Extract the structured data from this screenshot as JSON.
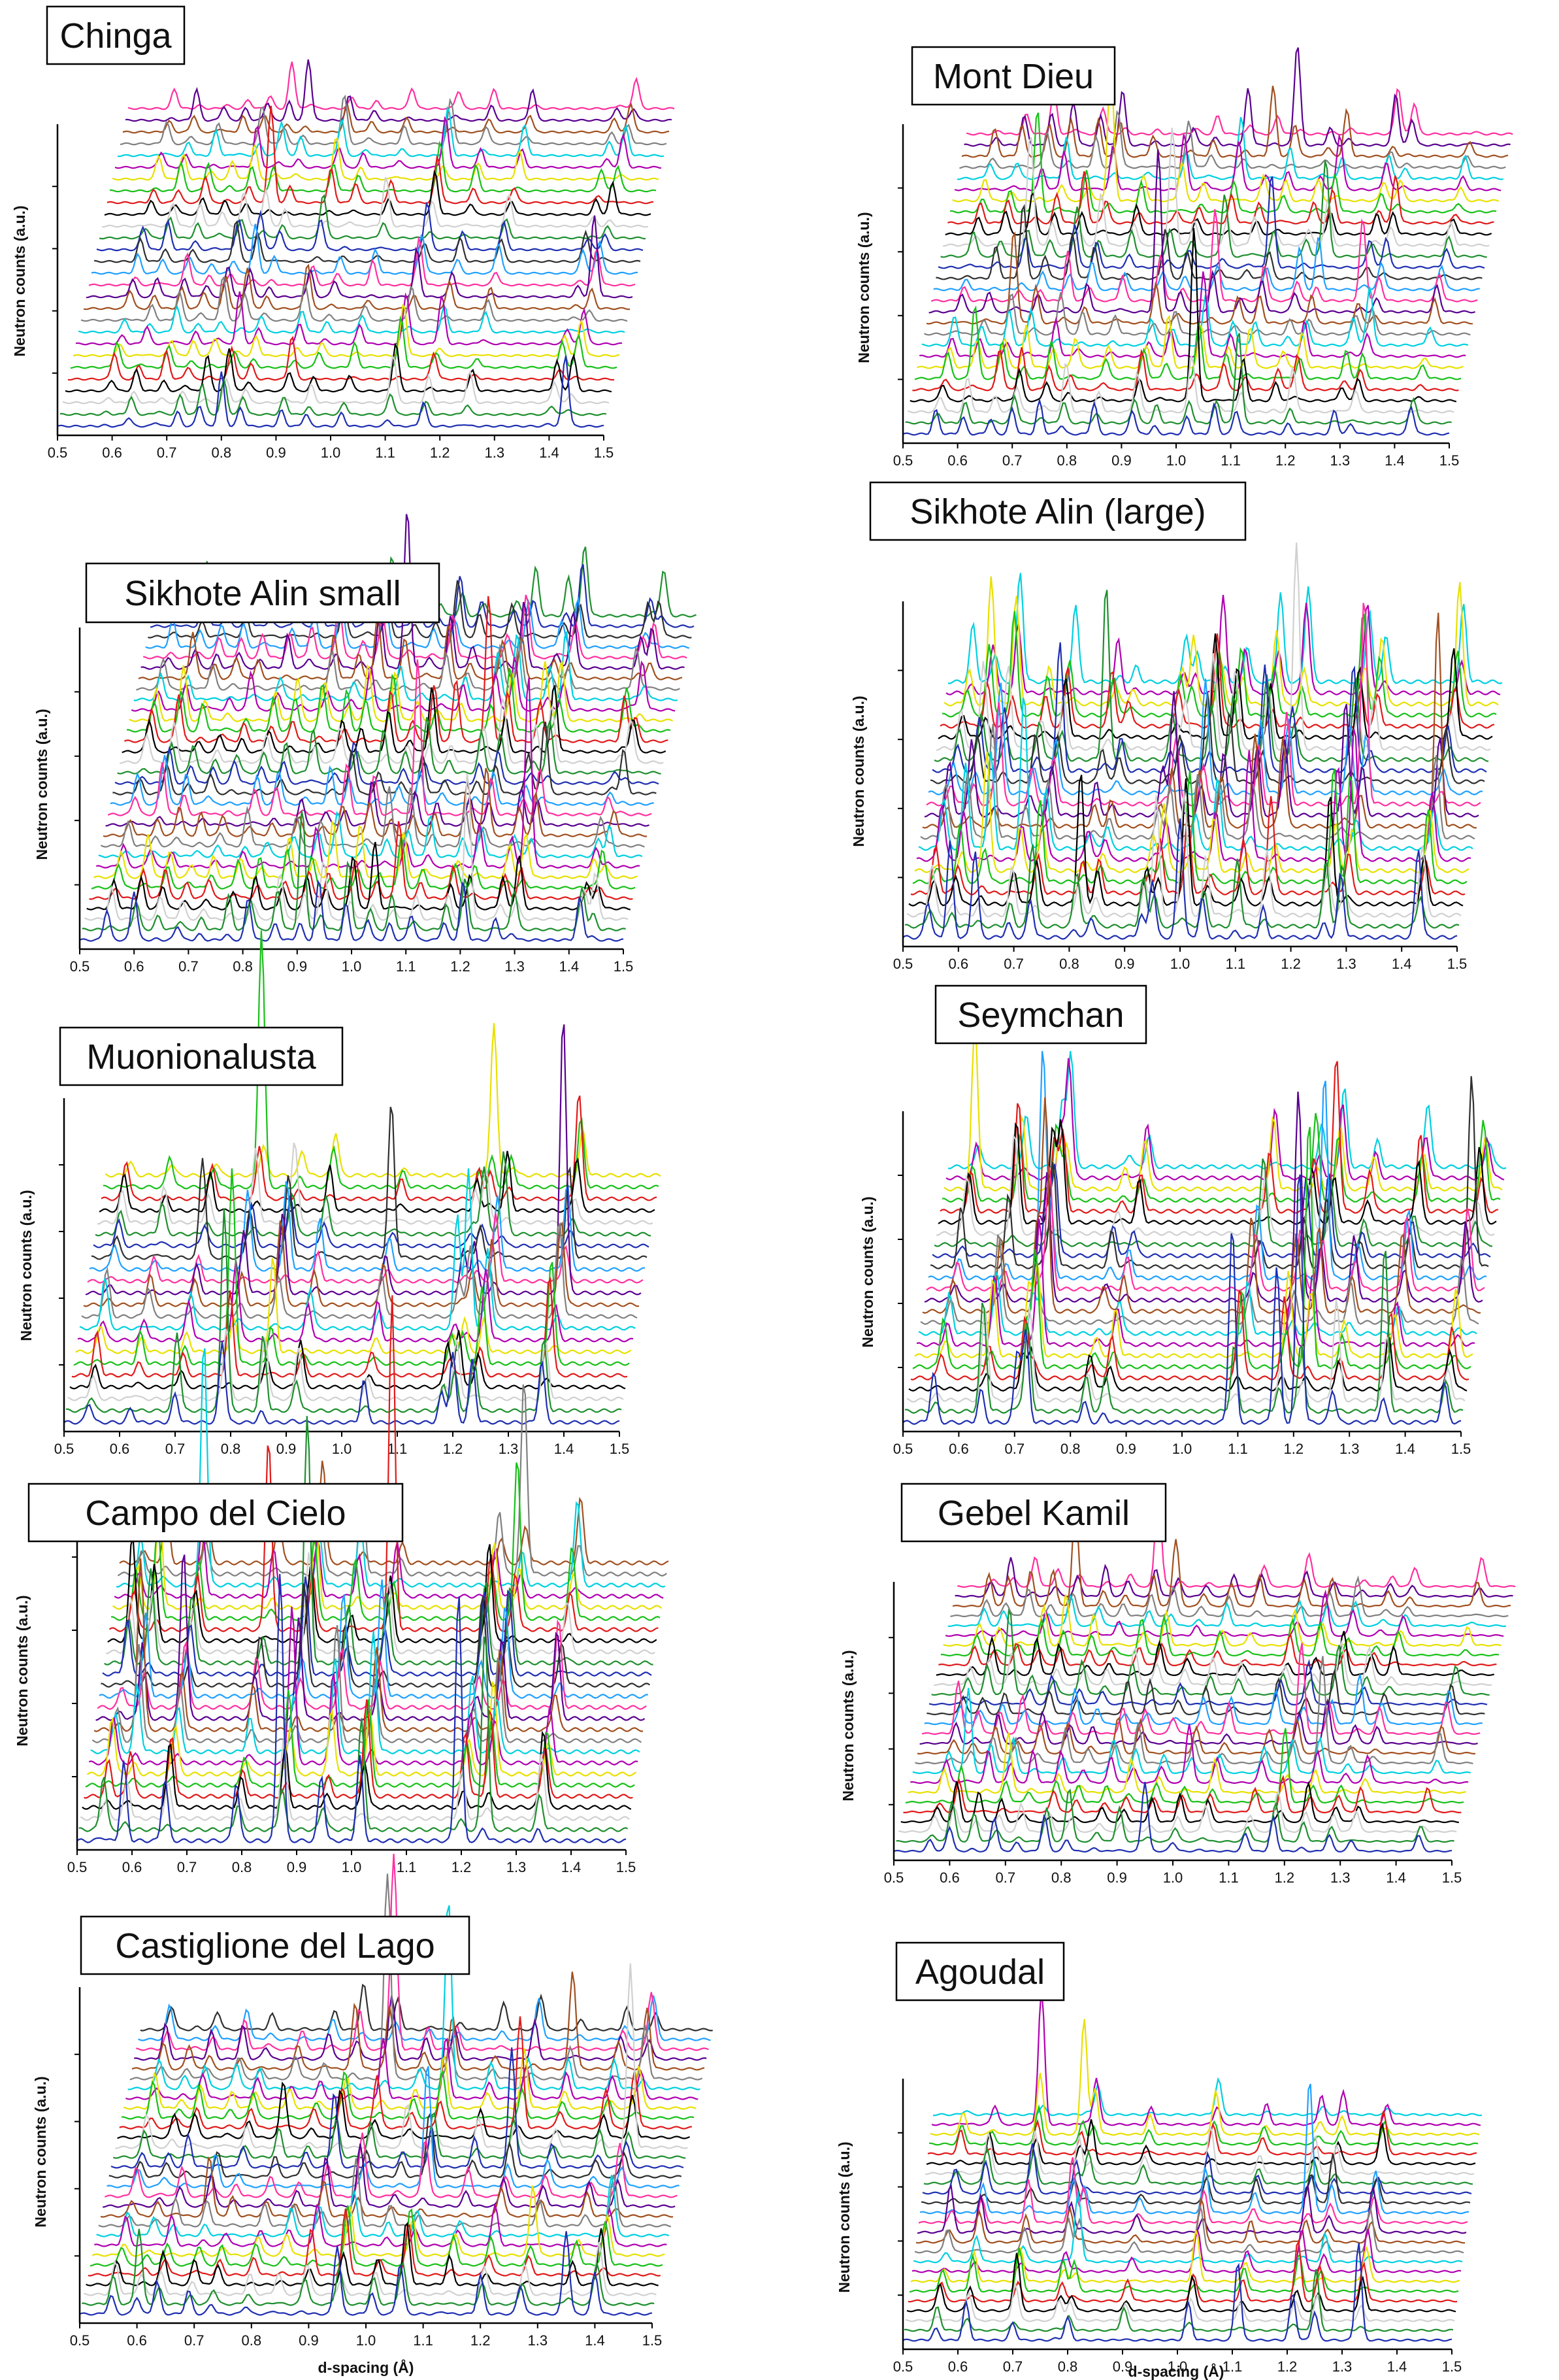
{
  "chart_data": {
    "type": "line",
    "figure_style": "waterfall",
    "palette": [
      "#1f2fb0",
      "#1f8f2f",
      "#d0d0d0",
      "#000000",
      "#e01a1a",
      "#18c018",
      "#e8e000",
      "#b000b0",
      "#00d0e0",
      "#808080",
      "#a05020",
      "#5a0090",
      "#ff30a0",
      "#20a0ff",
      "#303030"
    ],
    "panels": [
      {
        "title": "Chinga",
        "xlabel": "",
        "ylabel": "Neutron counts (a.u.)",
        "x_ticks": [
          "0.5",
          "0.6",
          "0.7",
          "0.8",
          "0.9",
          "1.0",
          "1.1",
          "1.2",
          "1.3",
          "1.4",
          "1.5"
        ],
        "xlim": [
          0.5,
          1.5
        ],
        "n_traces": 28,
        "seed": 11,
        "peaks_d": [
          0.585,
          0.63,
          0.68,
          0.72,
          0.76,
          0.8,
          0.835,
          0.91,
          0.955,
          1.02,
          1.105,
          1.17,
          1.245,
          1.4,
          1.43
        ]
      },
      {
        "title": "Mont Dieu",
        "xlabel": "",
        "ylabel": "Neutron counts (a.u.)",
        "x_ticks": [
          "0.5",
          "0.6",
          "0.7",
          "0.8",
          "0.9",
          "1.0",
          "1.1",
          "1.2",
          "1.3",
          "1.4",
          "1.5"
        ],
        "xlim": [
          0.5,
          1.5
        ],
        "n_traces": 28,
        "seed": 23,
        "peaks_d": [
          0.56,
          0.61,
          0.66,
          0.7,
          0.75,
          0.79,
          0.85,
          0.92,
          0.96,
          1.02,
          1.07,
          1.11,
          1.17,
          1.205,
          1.29,
          1.32,
          1.43
        ]
      },
      {
        "title": "Sikhote Alin small",
        "xlabel": "",
        "ylabel": "Neutron counts (a.u.)",
        "x_ticks": [
          "0.5",
          "0.6",
          "0.7",
          "0.8",
          "0.9",
          "1.0",
          "1.1",
          "1.2",
          "1.3",
          "1.4",
          "1.5"
        ],
        "xlim": [
          0.5,
          1.5
        ],
        "n_traces": 32,
        "seed": 37,
        "peaks_d": [
          0.55,
          0.6,
          0.64,
          0.68,
          0.72,
          0.77,
          0.81,
          0.86,
          0.905,
          0.94,
          0.99,
          1.03,
          1.07,
          1.11,
          1.17,
          1.205,
          1.265,
          1.295,
          1.42,
          1.44
        ]
      },
      {
        "title": "Sikhote Alin (large)",
        "xlabel": "",
        "ylabel": "Neutron counts (a.u.)",
        "x_ticks": [
          "0.5",
          "0.6",
          "0.7",
          "0.8",
          "0.9",
          "1.0",
          "1.1",
          "1.2",
          "1.3",
          "1.4",
          "1.5"
        ],
        "xlim": [
          0.5,
          1.5
        ],
        "n_traces": 24,
        "seed": 41,
        "peaks_d": [
          0.545,
          0.585,
          0.63,
          0.69,
          0.73,
          0.81,
          0.84,
          0.93,
          0.95,
          1.0,
          1.04,
          1.1,
          1.15,
          1.26,
          1.29,
          1.43
        ]
      },
      {
        "title": "Muonionalusta",
        "xlabel": "",
        "ylabel": "Neutron counts (a.u.)",
        "x_ticks": [
          "0.5",
          "0.6",
          "0.7",
          "0.8",
          "0.9",
          "1.0",
          "1.1",
          "1.2",
          "1.3",
          "1.4",
          "1.5"
        ],
        "xlim": [
          0.5,
          1.5
        ],
        "n_traces": 22,
        "seed": 53,
        "peaks_d": [
          0.545,
          0.62,
          0.7,
          0.785,
          0.855,
          0.915,
          1.04,
          1.18,
          1.2,
          1.235,
          1.36
        ]
      },
      {
        "title": "Seymchan",
        "xlabel": "",
        "ylabel": "Neutron counts (a.u.)",
        "x_ticks": [
          "0.5",
          "0.6",
          "0.7",
          "0.8",
          "0.9",
          "1.0",
          "1.1",
          "1.2",
          "1.3",
          "1.4",
          "1.5"
        ],
        "xlim": [
          0.5,
          1.5
        ],
        "n_traces": 24,
        "seed": 61,
        "peaks_d": [
          0.555,
          0.64,
          0.705,
          0.72,
          0.825,
          0.86,
          1.09,
          1.17,
          1.21,
          1.27,
          1.36,
          1.47
        ]
      },
      {
        "title": "Campo del Cielo",
        "xlabel": "",
        "ylabel": "Neutron counts (a.u.)",
        "x_ticks": [
          "0.5",
          "0.6",
          "0.7",
          "0.8",
          "0.9",
          "1.0",
          "1.1",
          "1.2",
          "1.3",
          "1.4",
          "1.5"
        ],
        "xlim": [
          0.5,
          1.5
        ],
        "n_traces": 26,
        "seed": 71,
        "peaks_d": [
          0.545,
          0.585,
          0.66,
          0.79,
          0.87,
          0.945,
          1.015,
          1.195,
          1.24,
          1.34
        ]
      },
      {
        "title": "Gebel Kamil",
        "xlabel": "",
        "ylabel": "Neutron counts (a.u.)",
        "x_ticks": [
          "0.5",
          "0.6",
          "0.7",
          "0.8",
          "0.9",
          "1.0",
          "1.1",
          "1.2",
          "1.3",
          "1.4",
          "1.5"
        ],
        "xlim": [
          0.5,
          1.5
        ],
        "n_traces": 28,
        "seed": 83,
        "peaks_d": [
          0.565,
          0.6,
          0.64,
          0.68,
          0.72,
          0.77,
          0.81,
          0.86,
          0.9,
          0.95,
          1.0,
          1.05,
          1.13,
          1.18,
          1.23,
          1.28,
          1.32,
          1.44
        ]
      },
      {
        "title": "Castiglione del Lago",
        "xlabel": "d-spacing (Å)",
        "ylabel": "Neutron counts (a.u.)",
        "x_ticks": [
          "0.5",
          "0.6",
          "0.7",
          "0.8",
          "0.9",
          "1.0",
          "1.1",
          "1.2",
          "1.3",
          "1.4",
          "1.5"
        ],
        "xlim": [
          0.5,
          1.5
        ],
        "n_traces": 30,
        "seed": 97,
        "peaks_d": [
          0.555,
          0.6,
          0.635,
          0.69,
          0.73,
          0.79,
          0.84,
          0.89,
          0.95,
          1.01,
          1.06,
          1.135,
          1.2,
          1.27,
          1.35,
          1.4
        ]
      },
      {
        "title": "Agoudal",
        "xlabel": "d-spacing (Å)",
        "ylabel": "Neutron counts (a.u.)",
        "x_ticks": [
          "0.5",
          "0.6",
          "0.7",
          "0.8",
          "0.9",
          "1.0",
          "1.1",
          "1.2",
          "1.3",
          "1.4",
          "1.5"
        ],
        "xlim": [
          0.5,
          1.5
        ],
        "n_traces": 24,
        "seed": 101,
        "peaks_d": [
          0.56,
          0.615,
          0.7,
          0.78,
          0.8,
          0.9,
          1.02,
          1.11,
          1.21,
          1.25,
          1.33
        ]
      }
    ]
  }
}
